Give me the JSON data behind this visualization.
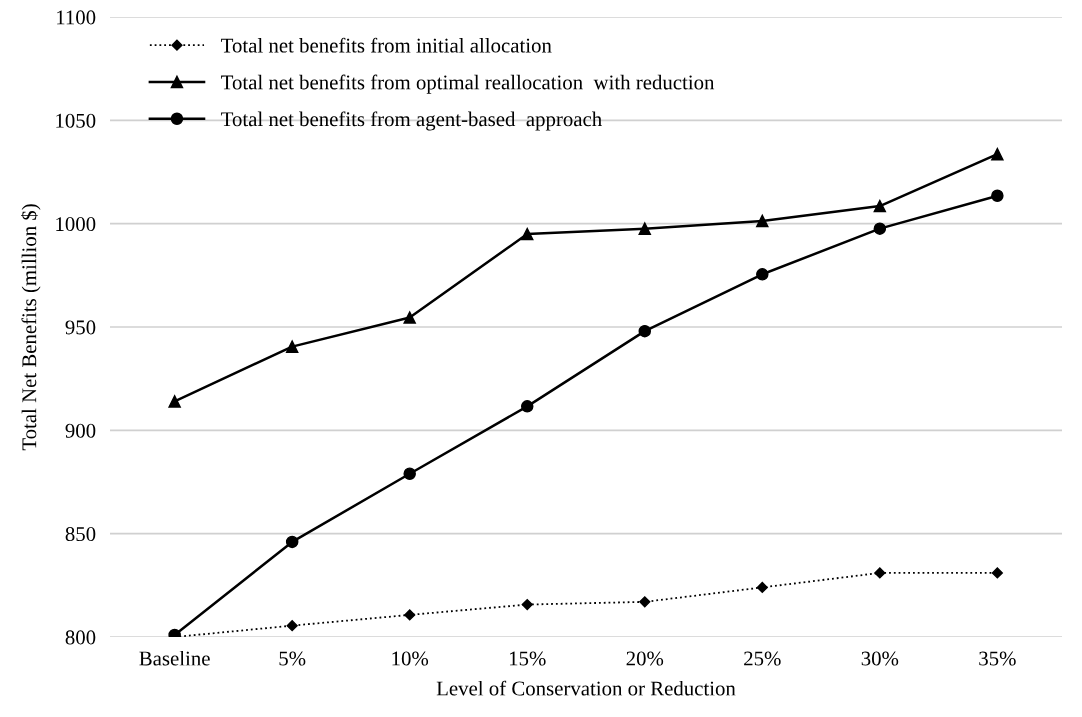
{
  "chart_data": {
    "type": "line",
    "xlabel": "Level of Conservation or Reduction",
    "ylabel": "Total Net Benefits (million $)",
    "categories": [
      "Baseline",
      "5%",
      "10%",
      "15%",
      "20%",
      "25%",
      "30%",
      "35%"
    ],
    "series": [
      {
        "name": "Total net benefits from initial allocation",
        "color": "#000000",
        "marker": "diamond",
        "line_style": "dotted",
        "values": [
          800,
          805.5,
          810.7,
          815.7,
          817,
          824,
          831,
          831
        ]
      },
      {
        "name": "Total net benefits from optimal reallocation  with reduction",
        "color": "#000000",
        "marker": "triangle",
        "line_style": "solid",
        "values": [
          914,
          940.5,
          954.6,
          995,
          997.6,
          1001.3,
          1008.5,
          1033.6
        ]
      },
      {
        "name": "Total net benefits from agent-based  approach",
        "color": "#000000",
        "marker": "circle",
        "line_style": "solid",
        "values": [
          801,
          846,
          879,
          911.6,
          948,
          975.5,
          997.6,
          1013.5
        ]
      }
    ],
    "ylim": [
      800,
      1100
    ],
    "yticks": [
      800,
      850,
      900,
      950,
      1000,
      1050,
      1100
    ],
    "grid": "y",
    "legend": "top left"
  }
}
